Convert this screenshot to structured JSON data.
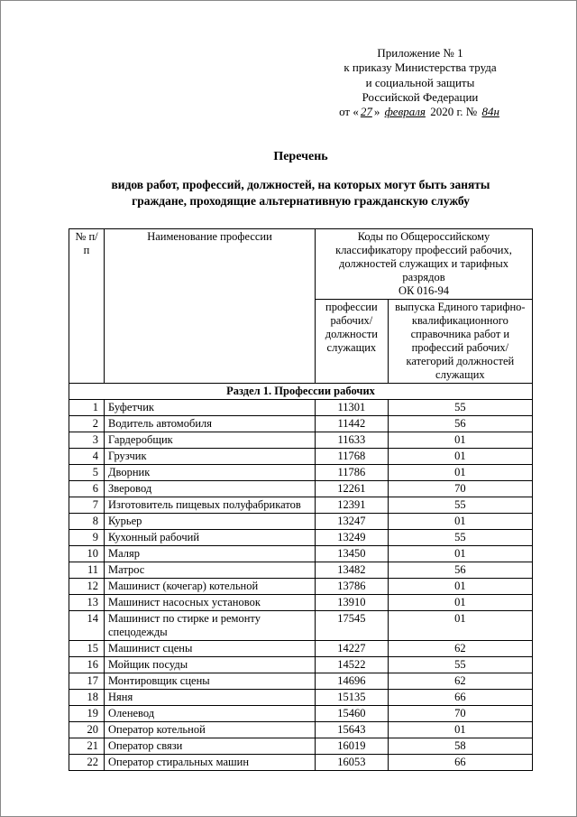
{
  "appendix": {
    "line1": "Приложение № 1",
    "line2": "к приказу Министерства труда",
    "line3": "и социальной защиты",
    "line4": "Российской Федерации",
    "date_prefix": "от «",
    "day": "27",
    "date_mid": "» ",
    "month": "февраля",
    "year_text": " 2020 г.  № ",
    "num": "84н"
  },
  "title": {
    "main": "Перечень",
    "sub1": "видов работ, профессий, должностей, на которых могут быть заняты",
    "sub2": "граждане, проходящие альтернативную гражданскую службу"
  },
  "table": {
    "header": {
      "num": "№ п/п",
      "name": "Наименование профессии",
      "codes_top": "Коды по Общероссийскому классификатору профессий рабочих, должностей служащих и тарифных разрядов",
      "codes_ok": "ОК 016-94",
      "col1": "профессии рабочих/должности служащих",
      "col2": "выпуска Единого тарифно-квалификационного справочника работ и профессий рабочих/категорий должностей служащих"
    },
    "section": "Раздел 1. Профессии рабочих",
    "rows": [
      {
        "n": "1",
        "name": "Буфетчик",
        "c1": "11301",
        "c2": "55"
      },
      {
        "n": "2",
        "name": "Водитель автомобиля",
        "c1": "11442",
        "c2": "56"
      },
      {
        "n": "3",
        "name": "Гардеробщик",
        "c1": "11633",
        "c2": "01"
      },
      {
        "n": "4",
        "name": "Грузчик",
        "c1": "11768",
        "c2": "01"
      },
      {
        "n": "5",
        "name": "Дворник",
        "c1": "11786",
        "c2": "01"
      },
      {
        "n": "6",
        "name": "Зверовод",
        "c1": "12261",
        "c2": "70"
      },
      {
        "n": "7",
        "name": "Изготовитель пищевых полуфабрикатов",
        "c1": "12391",
        "c2": "55"
      },
      {
        "n": "8",
        "name": "Курьер",
        "c1": "13247",
        "c2": "01"
      },
      {
        "n": "9",
        "name": "Кухонный рабочий",
        "c1": "13249",
        "c2": "55"
      },
      {
        "n": "10",
        "name": "Маляр",
        "c1": "13450",
        "c2": "01"
      },
      {
        "n": "11",
        "name": "Матрос",
        "c1": "13482",
        "c2": "56"
      },
      {
        "n": "12",
        "name": "Машинист (кочегар) котельной",
        "c1": "13786",
        "c2": "01"
      },
      {
        "n": "13",
        "name": "Машинист насосных установок",
        "c1": "13910",
        "c2": "01"
      },
      {
        "n": "14",
        "name": "Машинист по стирке и ремонту спецодежды",
        "c1": "17545",
        "c2": "01"
      },
      {
        "n": "15",
        "name": "Машинист сцены",
        "c1": "14227",
        "c2": "62"
      },
      {
        "n": "16",
        "name": "Мойщик посуды",
        "c1": "14522",
        "c2": "55"
      },
      {
        "n": "17",
        "name": "Монтировщик сцены",
        "c1": "14696",
        "c2": "62"
      },
      {
        "n": "18",
        "name": "Няня",
        "c1": "15135",
        "c2": "66"
      },
      {
        "n": "19",
        "name": "Оленевод",
        "c1": "15460",
        "c2": "70"
      },
      {
        "n": "20",
        "name": "Оператор котельной",
        "c1": "15643",
        "c2": "01"
      },
      {
        "n": "21",
        "name": "Оператор связи",
        "c1": "16019",
        "c2": "58"
      },
      {
        "n": "22",
        "name": "Оператор стиральных машин",
        "c1": "16053",
        "c2": "66"
      }
    ]
  }
}
